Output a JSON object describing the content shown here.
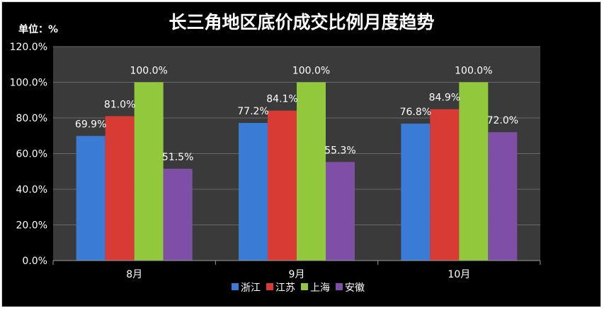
{
  "chart_data": {
    "type": "bar",
    "title": "长三角地区底价成交比例月度趋势",
    "unit_label": "单位：%",
    "categories": [
      "8月",
      "9月",
      "10月"
    ],
    "series": [
      {
        "name": "浙江",
        "color": "#3a7bd5",
        "values": [
          69.9,
          77.2,
          76.8
        ],
        "labels": [
          "69.9%",
          "77.2%",
          "76.8%"
        ]
      },
      {
        "name": "江苏",
        "color": "#d83b34",
        "values": [
          81.0,
          84.1,
          84.9
        ],
        "labels": [
          "81.0%",
          "84.1%",
          "84.9%"
        ]
      },
      {
        "name": "上海",
        "color": "#92c93c",
        "values": [
          100.0,
          100.0,
          100.0
        ],
        "labels": [
          "100.0%",
          "100.0%",
          "100.0%"
        ]
      },
      {
        "name": "安徽",
        "color": "#7f4fa8",
        "values": [
          51.5,
          55.3,
          72.0
        ],
        "labels": [
          "51.5%",
          "55.3%",
          "72.0%"
        ]
      }
    ],
    "ylim": [
      0,
      120
    ],
    "yticks": [
      0,
      20,
      40,
      60,
      80,
      100,
      120
    ],
    "ytick_labels": [
      "0.0%",
      "20.0%",
      "40.0%",
      "60.0%",
      "80.0%",
      "100.0%",
      "120.0%"
    ],
    "grid": true,
    "legend": "bottom",
    "colors": {
      "background": "#000000",
      "plot_area": "#3a3a3a",
      "grid": "#6a6a6a",
      "text": "#ffffff"
    }
  }
}
